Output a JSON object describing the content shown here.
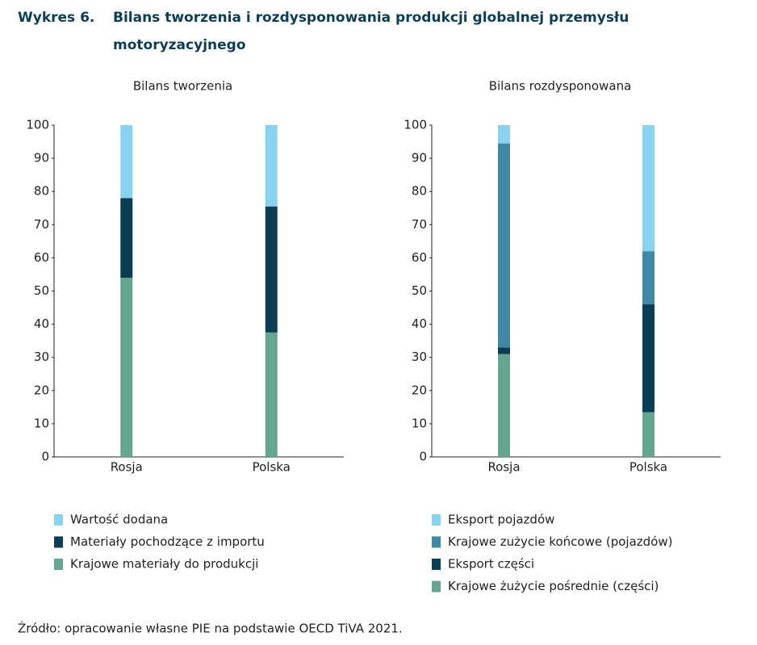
{
  "header": {
    "label": "Wykres 6.",
    "title_line1": "Bilans tworzenia i rozdysponowania produkcji globalnej przemysłu",
    "title_line2": "motoryzacyjnego"
  },
  "chart_data": [
    {
      "type": "stacked_bar",
      "title": "Bilans tworzenia",
      "categories": [
        "Rosja",
        "Polska"
      ],
      "ylim": [
        0,
        100
      ],
      "yticks": [
        0,
        10,
        20,
        30,
        40,
        50,
        60,
        70,
        80,
        90,
        100
      ],
      "series": [
        {
          "name": "Wartość dodana",
          "color": "#87d3ef",
          "values": [
            22,
            24.5
          ]
        },
        {
          "name": "Materiały pochodzące z importu",
          "color": "#0b3d55",
          "values": [
            24,
            38
          ]
        },
        {
          "name": "Krajowe materiały do produkcji",
          "color": "#65a68e",
          "values": [
            54,
            37.5
          ]
        }
      ]
    },
    {
      "type": "stacked_bar",
      "title": "Bilans rozdysponowana",
      "categories": [
        "Rosja",
        "Polska"
      ],
      "ylim": [
        0,
        100
      ],
      "yticks": [
        0,
        10,
        20,
        30,
        40,
        50,
        60,
        70,
        80,
        90,
        100
      ],
      "series": [
        {
          "name": "Eksport pojazdów",
          "color": "#87d3ef",
          "values": [
            5.5,
            38
          ]
        },
        {
          "name": "Krajowe zużycie końcowe (pojazdów)",
          "color": "#3f88a6",
          "values": [
            61.5,
            16
          ]
        },
        {
          "name": "Eksport części",
          "color": "#0b3d55",
          "values": [
            2,
            32.5
          ]
        },
        {
          "name": "Krajowe żużycie pośrednie (części)",
          "color": "#65a68e",
          "values": [
            31,
            13.5
          ]
        }
      ]
    }
  ],
  "source": "Źródło: opracowanie własne PIE na podstawie OECD TiVA 2021."
}
